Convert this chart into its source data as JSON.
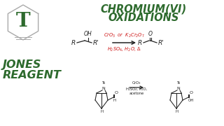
{
  "bg_color": "#ffffff",
  "title_line1": "CHROMIUM(VI)",
  "title_line2": "OXIDATIONS",
  "title_color": "#2d6a2d",
  "reagent_color": "#cc1111",
  "jones_color": "#2d6a2d",
  "mol_color": "#222222",
  "hex_color": "#999999",
  "T_color": "#2d6a2d",
  "jones_reagents": "CrO₃",
  "jones_conditions": "H₂SO₄, H₂O",
  "jones_solvent": "acetone"
}
